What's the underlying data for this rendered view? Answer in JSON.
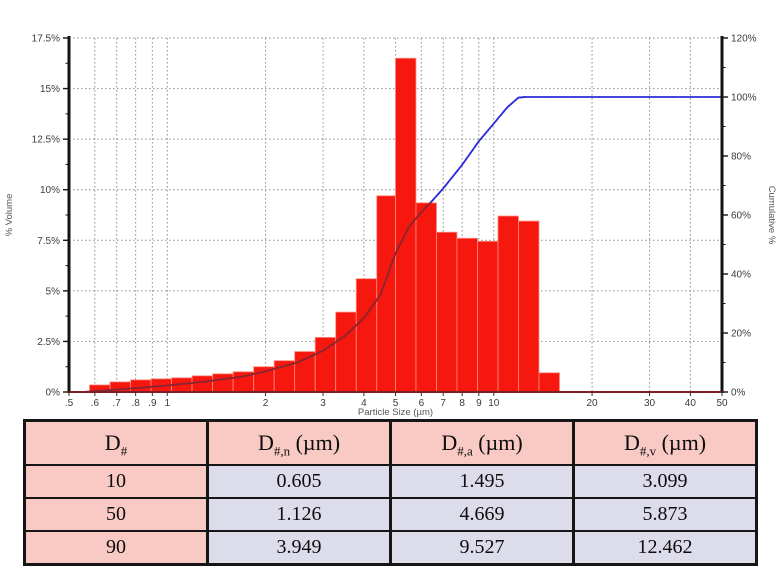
{
  "chart": {
    "x_axis": {
      "label": "Particle Size (µm)",
      "scale": "log",
      "ticks": [
        {
          "v": 0.5,
          "label": ".5"
        },
        {
          "v": 0.6,
          "label": ".6"
        },
        {
          "v": 0.7,
          "label": ".7"
        },
        {
          "v": 0.8,
          "label": ".8"
        },
        {
          "v": 0.9,
          "label": ".9"
        },
        {
          "v": 1,
          "label": "1"
        },
        {
          "v": 2,
          "label": "2"
        },
        {
          "v": 3,
          "label": "3"
        },
        {
          "v": 4,
          "label": "4"
        },
        {
          "v": 5,
          "label": "5"
        },
        {
          "v": 6,
          "label": "6"
        },
        {
          "v": 7,
          "label": "7"
        },
        {
          "v": 8,
          "label": "8"
        },
        {
          "v": 9,
          "label": "9"
        },
        {
          "v": 10,
          "label": "10"
        },
        {
          "v": 20,
          "label": "20"
        },
        {
          "v": 30,
          "label": "30"
        },
        {
          "v": 40,
          "label": "40"
        },
        {
          "v": 50,
          "label": "50"
        }
      ]
    },
    "y_left": {
      "label": "% Volume",
      "ticks": [
        {
          "v": 0,
          "label": "0%"
        },
        {
          "v": 2.5,
          "label": "2.5%"
        },
        {
          "v": 5,
          "label": "5%"
        },
        {
          "v": 7.5,
          "label": "7.5%"
        },
        {
          "v": 10,
          "label": "10%"
        },
        {
          "v": 12.5,
          "label": "12.5%"
        },
        {
          "v": 15,
          "label": "15%"
        },
        {
          "v": 17.5,
          "label": "17.5%"
        }
      ]
    },
    "y_right": {
      "label": "Cumulative %",
      "ticks": [
        {
          "v": 0,
          "label": "0%"
        },
        {
          "v": 20,
          "label": "20%"
        },
        {
          "v": 40,
          "label": "40%"
        },
        {
          "v": 60,
          "label": "60%"
        },
        {
          "v": 80,
          "label": "80%"
        },
        {
          "v": 100,
          "label": "100%"
        },
        {
          "v": 120,
          "label": "120%"
        }
      ]
    },
    "colors": {
      "bar": "#f6180f",
      "bar_edge": "#ff8d80",
      "curve": "#2d2ddc",
      "curve_over_bar": "#8a2430",
      "grid": "#8a8a8a",
      "axis": "#131313",
      "x_axis_line": "#7b2125",
      "tick_text": "#3c3c3c",
      "axis_title_text": "#555555"
    }
  },
  "chart_data": {
    "type": "bar",
    "subtype": "log-histogram with cumulative undersize line",
    "title": "",
    "xlabel": "Particle Size (µm)",
    "ylabel": "% Volume",
    "ylabel_right": "Cumulative %",
    "x_scale": "log",
    "xlim": [
      0.5,
      50
    ],
    "ylim": [
      0,
      17.5
    ],
    "ylim_right": [
      0,
      120
    ],
    "grid": true,
    "bin_edges_um": [
      0.578,
      0.668,
      0.772,
      0.892,
      1.031,
      1.191,
      1.377,
      1.591,
      1.839,
      2.125,
      2.456,
      2.838,
      3.28,
      3.791,
      4.381,
      5.0,
      5.777,
      6.676,
      7.714,
      8.914,
      10.301,
      11.903,
      13.755,
      15.895
    ],
    "volume_percent": [
      0.35,
      0.5,
      0.6,
      0.65,
      0.7,
      0.8,
      0.9,
      1.0,
      1.25,
      1.55,
      2.0,
      2.7,
      3.95,
      5.6,
      9.7,
      16.5,
      9.35,
      7.9,
      7.6,
      7.45,
      8.7,
      8.45,
      0.95
    ],
    "cumulative_percent_points": [
      [
        0.55,
        0
      ],
      [
        0.8,
        1.3
      ],
      [
        1.0,
        2.2
      ],
      [
        1.3,
        3.5
      ],
      [
        1.7,
        5.2
      ],
      [
        2.0,
        7
      ],
      [
        2.5,
        10
      ],
      [
        3.0,
        14
      ],
      [
        3.5,
        19
      ],
      [
        4.0,
        25
      ],
      [
        4.5,
        33
      ],
      [
        5.0,
        47
      ],
      [
        5.5,
        56
      ],
      [
        6.0,
        61
      ],
      [
        6.5,
        65
      ],
      [
        7.0,
        69
      ],
      [
        8.0,
        77
      ],
      [
        9.0,
        85
      ],
      [
        10.0,
        91
      ],
      [
        11.0,
        96.5
      ],
      [
        11.9,
        99.8
      ],
      [
        12.5,
        100
      ],
      [
        50,
        100
      ]
    ],
    "legend": "none"
  },
  "table": {
    "columns": [
      {
        "base": "D",
        "sub": "#",
        "unit": ""
      },
      {
        "base": "D",
        "sub": "#,n",
        "unit": " (µm)"
      },
      {
        "base": "D",
        "sub": "#,a",
        "unit": " (µm)"
      },
      {
        "base": "D",
        "sub": "#,v",
        "unit": " (µm)"
      }
    ],
    "rows": [
      {
        "percentile": "10",
        "values": [
          "0.605",
          "1.495",
          "3.099"
        ]
      },
      {
        "percentile": "50",
        "values": [
          "1.126",
          "4.669",
          "5.873"
        ]
      },
      {
        "percentile": "90",
        "values": [
          "3.949",
          "9.527",
          "12.462"
        ]
      }
    ]
  }
}
